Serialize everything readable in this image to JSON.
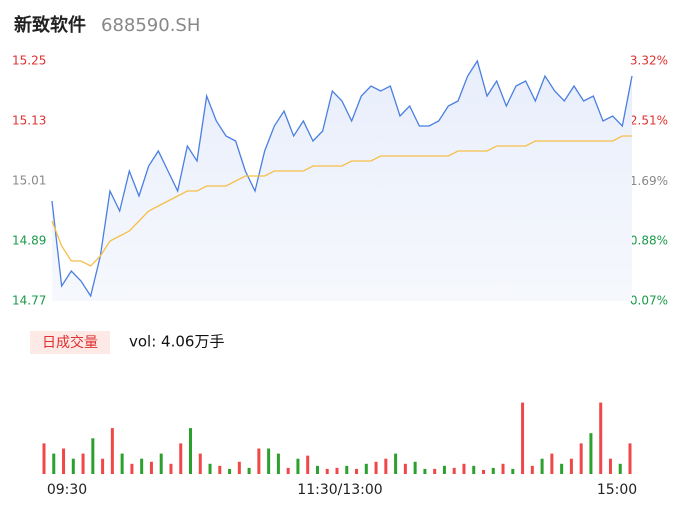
{
  "chart_data": {
    "type": "line",
    "title": "新致软件",
    "subtitle": "688590.SH",
    "series": [
      {
        "name": "price",
        "color": "#4a7fe0",
        "values": [
          14.97,
          14.8,
          14.83,
          14.81,
          14.78,
          14.86,
          14.99,
          14.95,
          15.03,
          14.98,
          15.04,
          15.07,
          15.03,
          14.99,
          15.08,
          15.05,
          15.18,
          15.13,
          15.1,
          15.09,
          15.03,
          14.99,
          15.07,
          15.12,
          15.15,
          15.1,
          15.13,
          15.09,
          15.11,
          15.19,
          15.17,
          15.13,
          15.18,
          15.2,
          15.19,
          15.2,
          15.14,
          15.16,
          15.12,
          15.12,
          15.13,
          15.16,
          15.17,
          15.22,
          15.25,
          15.18,
          15.21,
          15.16,
          15.2,
          15.21,
          15.17,
          15.22,
          15.19,
          15.17,
          15.2,
          15.17,
          15.18,
          15.13,
          15.14,
          15.12,
          15.22
        ]
      },
      {
        "name": "average",
        "color": "#f5bf4a",
        "values": [
          14.93,
          14.88,
          14.85,
          14.85,
          14.84,
          14.86,
          14.89,
          14.9,
          14.91,
          14.93,
          14.95,
          14.96,
          14.97,
          14.98,
          14.99,
          14.99,
          15.0,
          15.0,
          15.0,
          15.01,
          15.02,
          15.02,
          15.02,
          15.03,
          15.03,
          15.03,
          15.03,
          15.04,
          15.04,
          15.04,
          15.04,
          15.05,
          15.05,
          15.05,
          15.06,
          15.06,
          15.06,
          15.06,
          15.06,
          15.06,
          15.06,
          15.06,
          15.07,
          15.07,
          15.07,
          15.07,
          15.08,
          15.08,
          15.08,
          15.08,
          15.09,
          15.09,
          15.09,
          15.09,
          15.09,
          15.09,
          15.09,
          15.09,
          15.09,
          15.1,
          15.1
        ]
      }
    ],
    "ylim": [
      14.77,
      15.25
    ],
    "yticks": [
      15.25,
      15.13,
      15.01,
      14.89,
      14.77
    ],
    "y2lim": [
      0.07,
      3.32
    ],
    "y2ticks": [
      {
        "value": 3.32,
        "label": "3.32%"
      },
      {
        "value": 2.51,
        "label": "2.51%"
      },
      {
        "value": 1.69,
        "label": "1.69%"
      },
      {
        "value": 0.88,
        "label": "0.88%"
      },
      {
        "value": 0.07,
        "label": "0.07%"
      }
    ],
    "tick_colors": [
      "#e03030",
      "#e03030",
      "#888888",
      "#1a9a4a",
      "#1a9a4a"
    ],
    "time_labels": [
      "09:30",
      "11:30/13:00",
      "15:00"
    ],
    "volume": {
      "title": "日成交量",
      "label": "vol: 4.06万手",
      "vlim": [
        0,
        100
      ],
      "up_color": "#f04848",
      "down_color": "#2ca02c",
      "values": [
        30,
        20,
        25,
        15,
        20,
        35,
        15,
        45,
        20,
        10,
        15,
        12,
        20,
        10,
        30,
        45,
        20,
        10,
        8,
        5,
        12,
        6,
        25,
        25,
        20,
        6,
        15,
        18,
        8,
        5,
        6,
        8,
        5,
        10,
        12,
        15,
        20,
        10,
        12,
        5,
        5,
        8,
        6,
        10,
        8,
        4,
        6,
        10,
        5,
        70,
        8,
        15,
        20,
        10,
        15,
        30,
        40,
        70,
        15,
        10,
        30
      ],
      "up": [
        true,
        false,
        true,
        false,
        true,
        false,
        true,
        true,
        false,
        true,
        false,
        true,
        false,
        true,
        true,
        false,
        true,
        false,
        true,
        false,
        true,
        false,
        true,
        false,
        false,
        true,
        false,
        true,
        false,
        true,
        true,
        false,
        true,
        false,
        true,
        true,
        false,
        true,
        false,
        false,
        true,
        false,
        true,
        true,
        false,
        true,
        false,
        true,
        false,
        true,
        true,
        false,
        true,
        false,
        true,
        true,
        false,
        true,
        true,
        false,
        true
      ]
    }
  }
}
